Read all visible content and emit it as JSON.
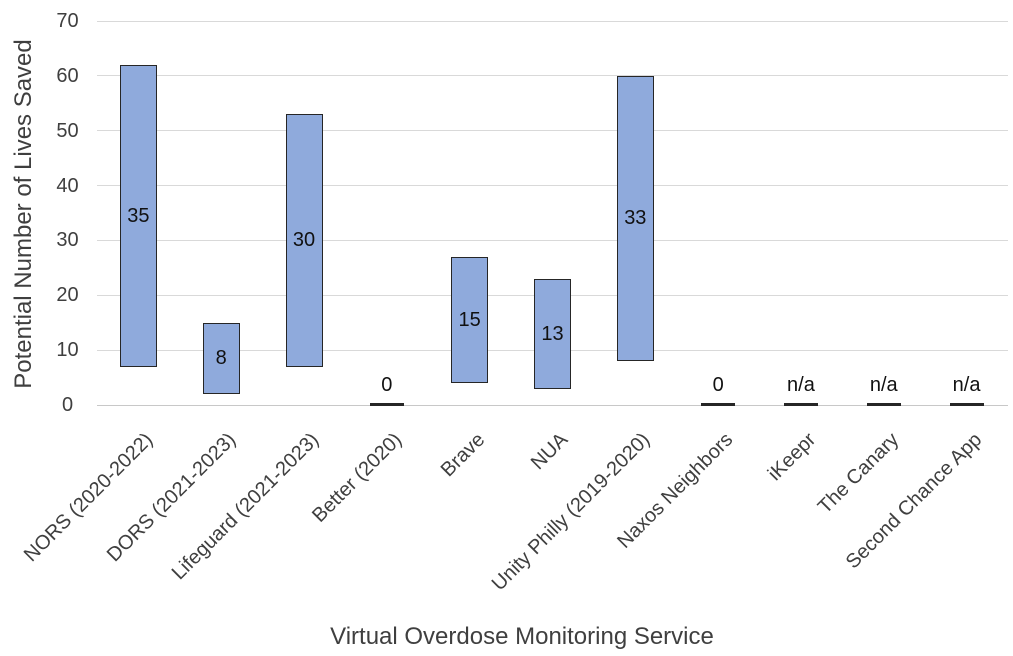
{
  "chart_data": {
    "type": "bar",
    "subtype": "floating_range_bars",
    "title": "",
    "xlabel": "Virtual Overdose Monitoring Service",
    "ylabel": "Potential Number of Lives Saved",
    "ylim": [
      0,
      70
    ],
    "ytick_interval": 10,
    "yticks": [
      0,
      10,
      20,
      30,
      40,
      50,
      60,
      70
    ],
    "grid": "horizontal",
    "legend": "none",
    "bars": [
      {
        "category": "NORS (2020-2022)",
        "range_low": 7,
        "range_high": 62,
        "label": "35"
      },
      {
        "category": "DORS (2021-2023)",
        "range_low": 2,
        "range_high": 15,
        "label": "8"
      },
      {
        "category": "Lifeguard (2021-2023)",
        "range_low": 7,
        "range_high": 53,
        "label": "30"
      },
      {
        "category": "Better (2020)",
        "range_low": null,
        "range_high": null,
        "label": "0"
      },
      {
        "category": "Brave",
        "range_low": 4,
        "range_high": 27,
        "label": "15"
      },
      {
        "category": "NUA",
        "range_low": 3,
        "range_high": 23,
        "label": "13"
      },
      {
        "category": "Unity Philly (2019-2020)",
        "range_low": 8,
        "range_high": 60,
        "label": "33"
      },
      {
        "category": "Naxos Neighbors",
        "range_low": null,
        "range_high": null,
        "label": "0"
      },
      {
        "category": "iKeepr",
        "range_low": null,
        "range_high": null,
        "label": "n/a"
      },
      {
        "category": "The Canary",
        "range_low": null,
        "range_high": null,
        "label": "n/a"
      },
      {
        "category": "Second Chance App",
        "range_low": null,
        "range_high": null,
        "label": "n/a"
      }
    ],
    "colors": {
      "bar_fill": "#8FAADC",
      "bar_border": "#262626",
      "gridline": "#D9D9D9",
      "axis_line": "#C8C8C8",
      "text": "#3F3F3F",
      "label_text": "#111111",
      "background": "#FFFFFF"
    }
  }
}
